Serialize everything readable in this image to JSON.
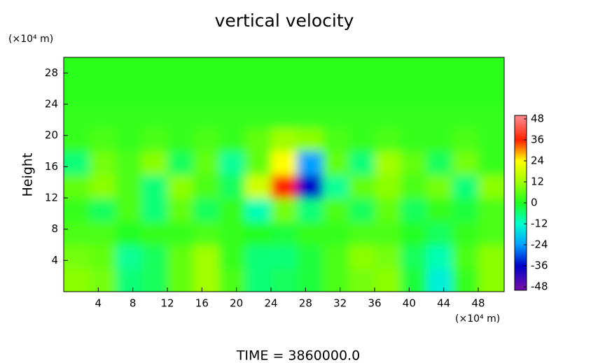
{
  "chart_data": {
    "type": "contour",
    "title": "vertical velocity",
    "ylabel": "Height",
    "xunit": "(×10⁴ m)",
    "yunit": "(×10⁴ m)",
    "footer": "TIME = 3860000.0",
    "xlim": [
      0,
      51
    ],
    "ylim": [
      0,
      30
    ],
    "xticks": [
      4,
      8,
      12,
      16,
      20,
      24,
      28,
      32,
      36,
      40,
      44,
      48
    ],
    "yticks": [
      4,
      8,
      12,
      16,
      20,
      24,
      28
    ],
    "x": [
      1.5,
      4.5,
      7.5,
      10.5,
      13.5,
      16.5,
      19.5,
      22.5,
      25.5,
      28.5,
      31.5,
      34.5,
      37.5,
      40.5,
      43.5,
      46.5,
      49.5
    ],
    "y": [
      1.5,
      4.5,
      7.5,
      10.5,
      13.5,
      16.5,
      19.5,
      22.5,
      25.5,
      28.5
    ],
    "z": [
      [
        10,
        8,
        -6,
        -4,
        6,
        12,
        4,
        -6,
        -4,
        -2,
        4,
        8,
        10,
        -2,
        -14,
        2,
        10
      ],
      [
        8,
        6,
        -8,
        -4,
        6,
        12,
        2,
        -6,
        -6,
        -2,
        4,
        10,
        8,
        -4,
        -10,
        4,
        10
      ],
      [
        4,
        4,
        0,
        2,
        2,
        4,
        2,
        0,
        -2,
        2,
        2,
        4,
        4,
        0,
        -4,
        2,
        4
      ],
      [
        2,
        -4,
        4,
        -6,
        6,
        -4,
        2,
        -10,
        8,
        -6,
        4,
        -4,
        6,
        -4,
        2,
        -2,
        4
      ],
      [
        6,
        10,
        4,
        -6,
        10,
        4,
        -4,
        18,
        36,
        -36,
        -8,
        6,
        10,
        4,
        8,
        -6,
        10
      ],
      [
        -6,
        8,
        4,
        10,
        -4,
        6,
        -8,
        6,
        24,
        -24,
        6,
        -6,
        12,
        6,
        -4,
        8,
        2
      ],
      [
        2,
        4,
        2,
        4,
        2,
        4,
        2,
        6,
        12,
        10,
        4,
        2,
        4,
        2,
        2,
        4,
        2
      ],
      [
        2,
        2,
        2,
        2,
        2,
        2,
        2,
        2,
        2,
        2,
        2,
        2,
        2,
        2,
        2,
        2,
        2
      ],
      [
        1,
        1,
        1,
        1,
        1,
        1,
        1,
        1,
        1,
        1,
        1,
        1,
        1,
        1,
        1,
        1,
        1
      ],
      [
        1,
        1,
        1,
        1,
        1,
        1,
        1,
        1,
        1,
        1,
        1,
        1,
        1,
        1,
        1,
        1,
        1
      ]
    ],
    "zlim": [
      -50,
      50
    ],
    "colorbar": {
      "ticks": [
        -48,
        -36,
        -24,
        -12,
        0,
        12,
        24,
        36,
        48
      ],
      "colors": [
        "#6a0dad",
        "#0000c8",
        "#00a0ff",
        "#00ffd0",
        "#20ff20",
        "#a0ff00",
        "#ffff00",
        "#ff2000",
        "#ff8080"
      ]
    }
  }
}
